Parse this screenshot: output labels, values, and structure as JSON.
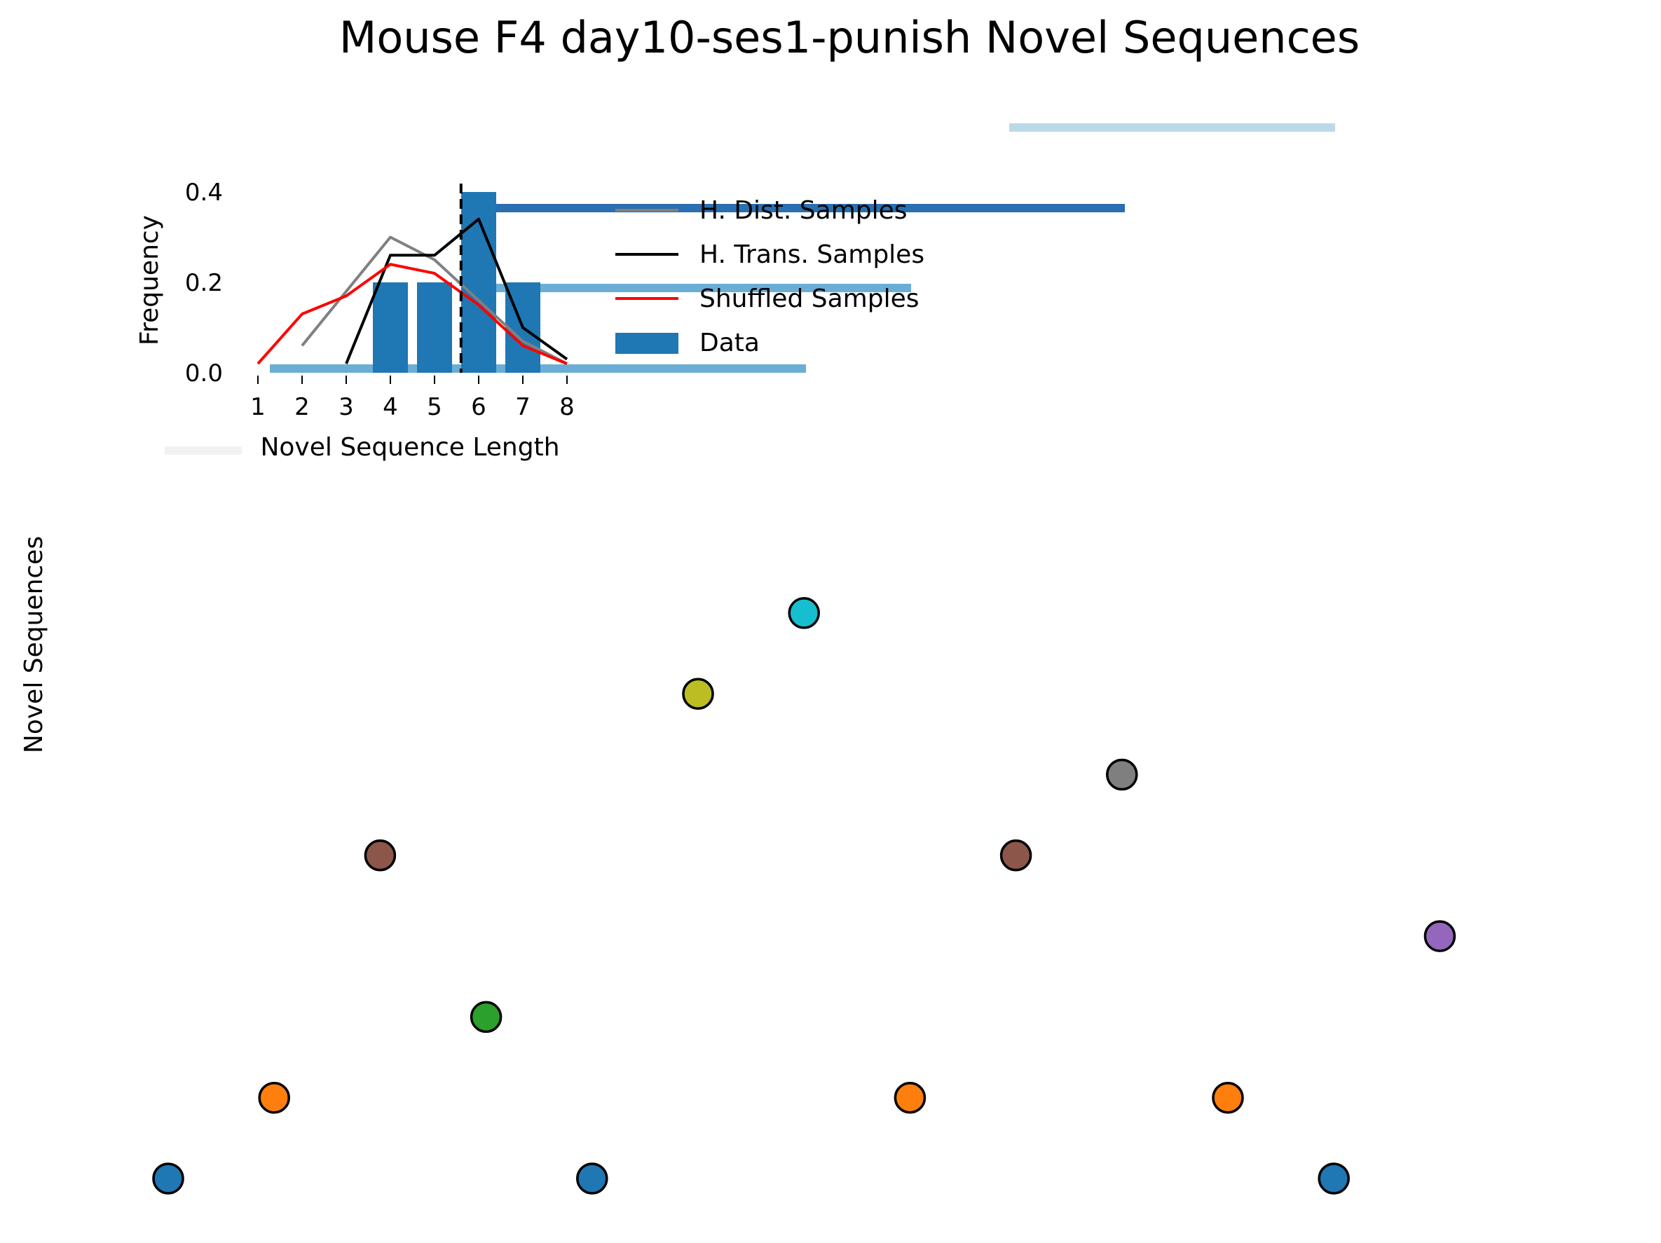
{
  "title": "Mouse F4 day10-ses1-punish Novel Sequences",
  "main_ylabel": "Novel Sequences",
  "colors": {
    "data_bar": "#1f77b4",
    "hdist_line": "#808080",
    "htrans_line": "#000000",
    "shuffled_line": "#ff0000",
    "stripe_dark": "#2a6fb0",
    "stripe_mid": "#6aaed6",
    "stripe_light": "#bcd9ea",
    "stripe_faint": "#f2f2f2"
  },
  "chart_data": [
    {
      "type": "bar",
      "role": "inset-histogram",
      "xlabel": "Novel Sequence Length",
      "ylabel": "Frequency",
      "xticks": [
        "1",
        "2",
        "3",
        "4",
        "5",
        "6",
        "7",
        "8"
      ],
      "yticks": [
        "0.0",
        "0.2",
        "0.4"
      ],
      "xlim": [
        1,
        8
      ],
      "ylim": [
        0,
        0.4
      ],
      "legend_position": "right of inset",
      "bars": {
        "name": "Data",
        "x": [
          4,
          5,
          6,
          7
        ],
        "values": [
          0.2,
          0.2,
          0.4,
          0.2
        ]
      },
      "lines": [
        {
          "name": "H. Dist. Samples",
          "x": [
            2,
            3,
            4,
            5,
            6,
            7,
            8
          ],
          "values": [
            0.06,
            0.18,
            0.3,
            0.25,
            0.16,
            0.07,
            0.02
          ]
        },
        {
          "name": "H. Trans. Samples",
          "x": [
            3,
            4,
            5,
            6,
            7,
            8
          ],
          "values": [
            0.02,
            0.26,
            0.26,
            0.34,
            0.1,
            0.03
          ]
        },
        {
          "name": "Shuffled Samples",
          "x": [
            1,
            2,
            3,
            4,
            5,
            6,
            7,
            8
          ],
          "values": [
            0.02,
            0.13,
            0.17,
            0.24,
            0.22,
            0.15,
            0.06,
            0.02
          ]
        }
      ],
      "vline": {
        "x": 5.6,
        "style": "dashed"
      },
      "legend": [
        "H. Dist. Samples",
        "H. Trans. Samples",
        "Shuffled Samples",
        "Data"
      ]
    },
    {
      "type": "scatter",
      "role": "novel-sequences",
      "ylabel": "Novel Sequences",
      "xlim": [
        0,
        12.5
      ],
      "ylim": [
        -0.4,
        8.5
      ],
      "grid": false,
      "points": [
        {
          "x": 0,
          "y": 0,
          "color": "#1f77b4"
        },
        {
          "x": 1,
          "y": 1,
          "color": "#ff7f0e"
        },
        {
          "x": 2,
          "y": 4,
          "color": "#8c564b"
        },
        {
          "x": 3,
          "y": 2,
          "color": "#2ca02c"
        },
        {
          "x": 4,
          "y": 0,
          "color": "#1f77b4"
        },
        {
          "x": 5,
          "y": 6,
          "color": "#bcbd22"
        },
        {
          "x": 6,
          "y": 7,
          "color": "#17becf"
        },
        {
          "x": 7,
          "y": 1,
          "color": "#ff7f0e"
        },
        {
          "x": 8,
          "y": 4,
          "color": "#8c564b"
        },
        {
          "x": 9,
          "y": 5,
          "color": "#7f7f7f"
        },
        {
          "x": 10,
          "y": 1,
          "color": "#ff7f0e"
        },
        {
          "x": 11,
          "y": 0,
          "color": "#1f77b4"
        },
        {
          "x": 12,
          "y": 3,
          "color": "#9467bd"
        }
      ]
    }
  ]
}
